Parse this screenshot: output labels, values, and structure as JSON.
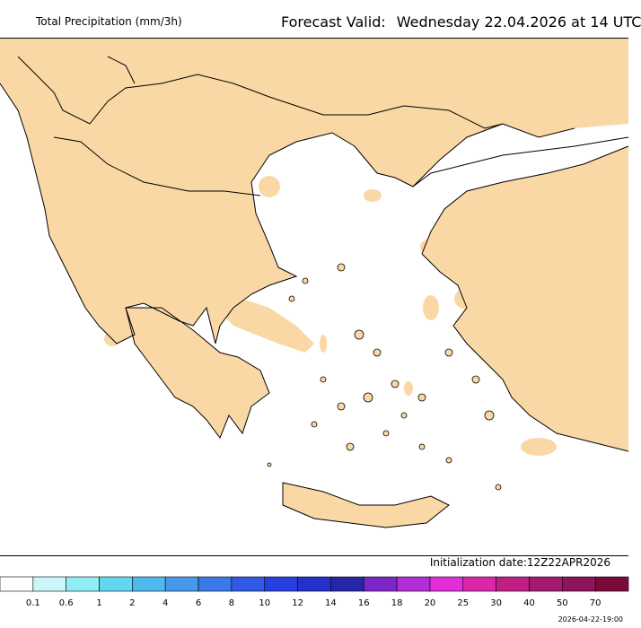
{
  "header": {
    "product": "Total Precipitation (mm/3h)",
    "valid_prefix": "Forecast Valid:",
    "valid_time": "Wednesday 22.04.2026 at 14 UTC"
  },
  "footer": {
    "initialization": "Initialization date:12Z22APR2026",
    "timestamp": "2026-04-22-19:00"
  },
  "map": {
    "region": "Greece and Aegean Sea",
    "colors": {
      "sea": "#ffffff",
      "land_dry": "#fad8a6",
      "border_line": "#000000"
    }
  },
  "legend": {
    "labels": [
      "0.1",
      "0.6",
      "1",
      "2",
      "4",
      "6",
      "8",
      "10",
      "12",
      "14",
      "16",
      "18",
      "20",
      "25",
      "30",
      "40",
      "50",
      "70"
    ],
    "colors": [
      "#ffffff",
      "#c9f7f9",
      "#8eeef3",
      "#62d6ef",
      "#4fb8ec",
      "#4898ea",
      "#3c79e8",
      "#3159e6",
      "#2840df",
      "#2431cc",
      "#2527a8",
      "#7b27c8",
      "#b22ed6",
      "#e12ed8",
      "#da27a8",
      "#c01f86",
      "#a31a6f",
      "#8c1458",
      "#7a0a3a"
    ]
  }
}
